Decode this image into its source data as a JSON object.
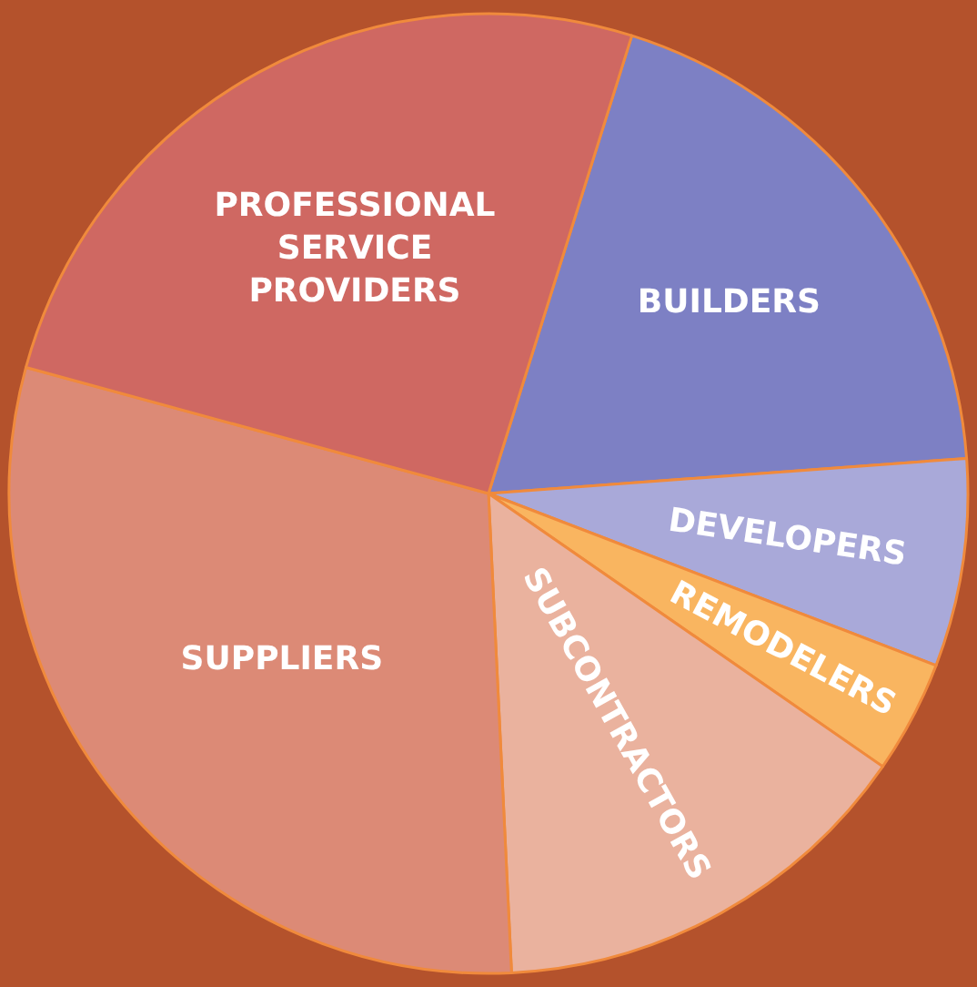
{
  "chart_data": {
    "type": "pie",
    "categories": [
      "BUILDERS",
      "DEVELOPERS",
      "REMODELERS",
      "SUBCONTRACTORS",
      "SUPPLIERS",
      "PROFESSIONAL SERVICE PROVIDERS"
    ],
    "values": [
      19.0,
      7.0,
      3.8,
      14.6,
      30.0,
      25.6
    ],
    "colors": [
      "#7d80c4",
      "#a9a9d9",
      "#f9b560",
      "#eab29e",
      "#dc8a76",
      "#cf6862"
    ],
    "legend": false
  }
}
